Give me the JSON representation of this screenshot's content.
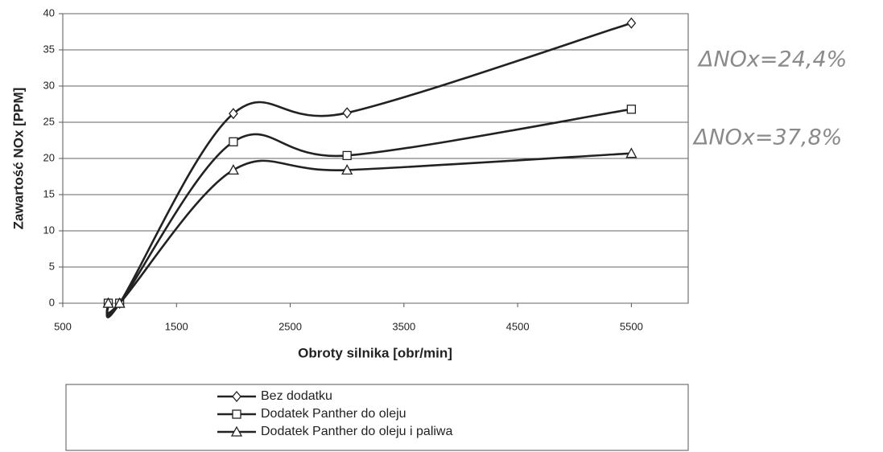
{
  "chart_data": {
    "type": "line",
    "x": [
      900,
      1000,
      2000,
      3000,
      5500
    ],
    "series": [
      {
        "name": "Bez dodatku",
        "color": "#222222",
        "marker": "diamond",
        "values": [
          0,
          0,
          26.2,
          26.3,
          38.7
        ]
      },
      {
        "name": "Dodatek Panther do oleju",
        "color": "#222222",
        "marker": "square",
        "values": [
          0,
          0,
          22.3,
          20.4,
          26.8
        ]
      },
      {
        "name": "Dodatek Panther do oleju i paliwa",
        "color": "#222222",
        "marker": "triangle",
        "values": [
          0,
          0,
          18.4,
          18.4,
          20.7
        ]
      }
    ],
    "xlabel": "Obroty silnika [obr/min]",
    "ylabel": "Zawartość NOx [PPM]",
    "xlim": [
      500,
      6000
    ],
    "xticks": [
      500,
      1500,
      2500,
      3500,
      4500,
      5500
    ],
    "ylim": [
      0,
      40
    ],
    "yticks": [
      0,
      5,
      10,
      15,
      20,
      25,
      30,
      35,
      40
    ],
    "grid": true,
    "smooth": true,
    "legend": "bottom",
    "annotations": [
      "ΔNOx=24,4%",
      "ΔNOx=37,8%"
    ]
  }
}
